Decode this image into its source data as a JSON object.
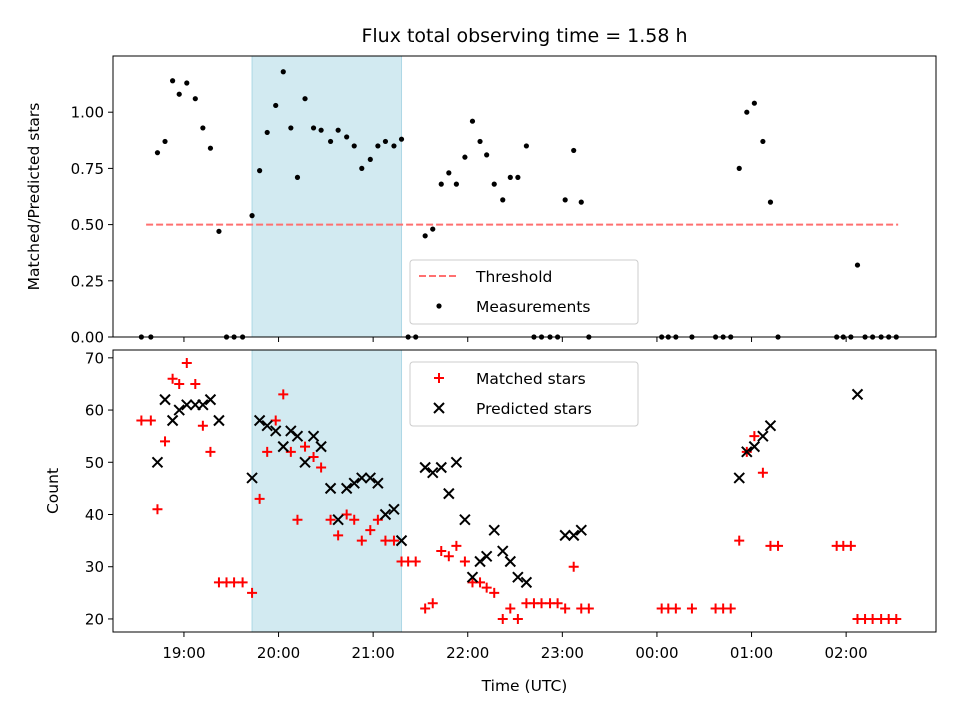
{
  "chart_data": [
    {
      "type": "scatter",
      "title": "Flux total observing time = 1.58 h",
      "xlabel": "",
      "ylabel": "Matched/Predicted stars",
      "xlim": [
        18.25,
        2.95
      ],
      "ylim": [
        0,
        1.25
      ],
      "yticks": [
        "0.00",
        "0.25",
        "0.50",
        "0.75",
        "1.00"
      ],
      "highlight_span": [
        19.72,
        21.3
      ],
      "highlight_color": "#add8e6",
      "legend_position": "lower-center",
      "series": [
        {
          "name": "Threshold",
          "kind": "line",
          "style": "dashed",
          "color": "#ff7070",
          "x": [
            18.6,
            2.55
          ],
          "y": [
            0.5,
            0.5
          ]
        },
        {
          "name": "Measurements",
          "kind": "points",
          "color": "#000000",
          "x": [
            18.55,
            18.65,
            18.72,
            18.8,
            18.88,
            18.95,
            19.03,
            19.12,
            19.2,
            19.28,
            19.37,
            19.45,
            19.53,
            19.62,
            19.72,
            19.8,
            19.88,
            19.97,
            20.05,
            20.13,
            20.2,
            20.28,
            20.37,
            20.45,
            20.55,
            20.63,
            20.72,
            20.8,
            20.88,
            20.97,
            21.05,
            21.13,
            21.22,
            21.3,
            21.37,
            21.45,
            21.55,
            21.63,
            21.72,
            21.8,
            21.88,
            21.97,
            22.05,
            22.13,
            22.2,
            22.28,
            22.37,
            22.45,
            22.53,
            22.62,
            22.7,
            22.78,
            22.87,
            22.95,
            23.03,
            23.12,
            23.2,
            23.28,
            0.05,
            0.12,
            0.2,
            0.37,
            0.62,
            0.7,
            0.78,
            0.87,
            0.95,
            1.03,
            1.12,
            1.2,
            1.28,
            1.9,
            1.97,
            2.05,
            2.12,
            2.2,
            2.28,
            2.37,
            2.45,
            2.53
          ],
          "y": [
            0,
            0,
            0.82,
            0.87,
            1.14,
            1.08,
            1.13,
            1.06,
            0.93,
            0.84,
            0.47,
            0,
            0,
            0,
            0.54,
            0.74,
            0.91,
            1.03,
            1.18,
            0.93,
            0.71,
            1.06,
            0.93,
            0.92,
            0.87,
            0.92,
            0.89,
            0.85,
            0.75,
            0.79,
            0.85,
            0.87,
            0.85,
            0.88,
            0,
            0,
            0.45,
            0.48,
            0.68,
            0.73,
            0.68,
            0.8,
            0.96,
            0.87,
            0.81,
            0.68,
            0.61,
            0.71,
            0.71,
            0.85,
            0,
            0,
            0,
            0,
            0.61,
            0.83,
            0.6,
            0,
            0,
            0,
            0,
            0,
            0,
            0,
            0,
            0.75,
            1,
            1.04,
            0.87,
            0.6,
            0,
            0,
            0,
            0,
            0.32,
            0,
            0,
            0,
            0,
            0
          ]
        }
      ]
    },
    {
      "type": "scatter",
      "title": "",
      "xlabel": "Time (UTC)",
      "ylabel": "Count",
      "xlim": [
        18.25,
        2.95
      ],
      "ylim": [
        17.5,
        71.5
      ],
      "yticks": [
        "20",
        "30",
        "40",
        "50",
        "60",
        "70"
      ],
      "xticks": [
        "19:00",
        "20:00",
        "21:00",
        "22:00",
        "23:00",
        "00:00",
        "01:00",
        "02:00"
      ],
      "highlight_span": [
        19.72,
        21.3
      ],
      "highlight_color": "#add8e6",
      "legend_position": "upper-center",
      "series": [
        {
          "name": "Matched stars",
          "kind": "plus",
          "color": "#ff0000",
          "x": [
            18.55,
            18.65,
            18.72,
            18.8,
            18.88,
            18.95,
            19.03,
            19.12,
            19.2,
            19.28,
            19.37,
            19.45,
            19.53,
            19.62,
            19.72,
            19.8,
            19.88,
            19.97,
            20.05,
            20.13,
            20.2,
            20.28,
            20.37,
            20.45,
            20.55,
            20.63,
            20.72,
            20.8,
            20.88,
            20.97,
            21.05,
            21.13,
            21.22,
            21.3,
            21.37,
            21.45,
            21.55,
            21.63,
            21.72,
            21.8,
            21.88,
            21.97,
            22.05,
            22.13,
            22.2,
            22.28,
            22.37,
            22.45,
            22.53,
            22.62,
            22.7,
            22.78,
            22.87,
            22.95,
            23.03,
            23.12,
            23.2,
            23.28,
            0.05,
            0.12,
            0.2,
            0.37,
            0.62,
            0.7,
            0.78,
            0.87,
            0.95,
            1.03,
            1.12,
            1.2,
            1.28,
            1.9,
            1.97,
            2.05,
            2.12,
            2.2,
            2.28,
            2.37,
            2.45,
            2.53
          ],
          "y": [
            58,
            58,
            41,
            54,
            66,
            65,
            69,
            65,
            57,
            52,
            27,
            27,
            27,
            27,
            25,
            43,
            52,
            58,
            63,
            52,
            39,
            53,
            51,
            49,
            39,
            36,
            40,
            39,
            35,
            37,
            39,
            35,
            35,
            31,
            31,
            31,
            22,
            23,
            33,
            32,
            34,
            31,
            27,
            27,
            26,
            25,
            20,
            22,
            20,
            23,
            23,
            23,
            23,
            23,
            22,
            30,
            22,
            22,
            22,
            22,
            22,
            22,
            22,
            22,
            22,
            35,
            52,
            55,
            48,
            34,
            34,
            34,
            34,
            34,
            20,
            20,
            20,
            20,
            20,
            20
          ],
          "highlight_span_note": ""
        },
        {
          "name": "Predicted stars",
          "kind": "x",
          "color": "#000000",
          "x": [
            18.72,
            18.8,
            18.88,
            18.95,
            19.03,
            19.12,
            19.2,
            19.28,
            19.37,
            19.72,
            19.8,
            19.88,
            19.97,
            20.05,
            20.13,
            20.2,
            20.28,
            20.37,
            20.45,
            20.55,
            20.63,
            20.72,
            20.8,
            20.88,
            20.97,
            21.05,
            21.13,
            21.22,
            21.3,
            21.55,
            21.63,
            21.72,
            21.8,
            21.88,
            21.97,
            22.05,
            22.13,
            22.2,
            22.28,
            22.37,
            22.45,
            22.53,
            22.62,
            23.03,
            23.12,
            23.2,
            0.87,
            0.95,
            1.03,
            1.12,
            1.2,
            2.12
          ],
          "y": [
            50,
            62,
            58,
            60,
            61,
            61,
            61,
            62,
            58,
            47,
            58,
            57,
            56,
            53,
            56,
            55,
            50,
            55,
            53,
            45,
            39,
            45,
            46,
            47,
            47,
            46,
            40,
            41,
            35,
            49,
            48,
            49,
            44,
            50,
            39,
            28,
            31,
            32,
            37,
            33,
            31,
            28,
            27,
            36,
            36,
            37,
            47,
            52,
            53,
            55,
            57,
            63
          ]
        }
      ]
    }
  ]
}
